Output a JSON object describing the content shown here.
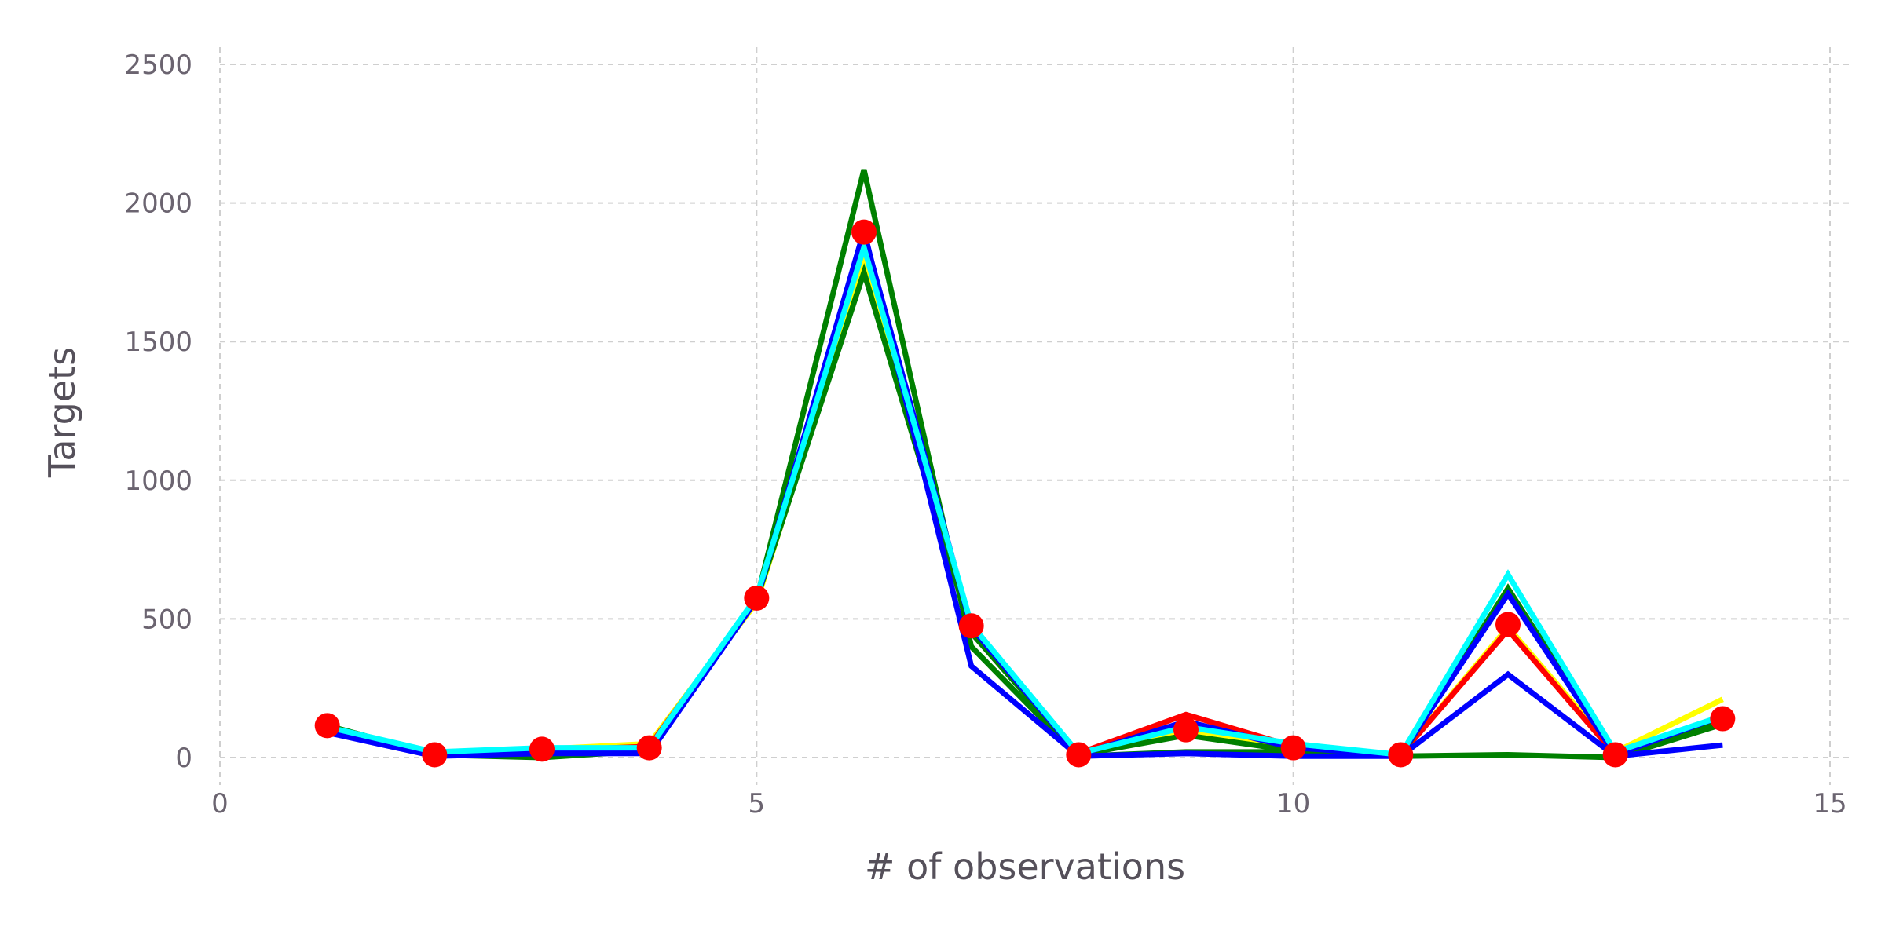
{
  "chart_data": {
    "type": "line",
    "title": "",
    "xlabel": "# of observations",
    "ylabel": "Targets",
    "xlim": [
      0,
      15
    ],
    "ylim": [
      -50,
      2550
    ],
    "xticks": [
      0,
      5,
      10,
      15
    ],
    "yticks": [
      0,
      500,
      1000,
      1500,
      2000,
      2500
    ],
    "xtick_labels": [
      "0",
      "5",
      "10",
      "15"
    ],
    "ytick_labels": [
      "0",
      "500",
      "1000",
      "1500",
      "2000",
      "2500"
    ],
    "grid": true,
    "x": [
      1,
      2,
      3,
      4,
      5,
      6,
      7,
      8,
      9,
      10,
      11,
      12,
      13,
      14
    ],
    "series": [
      {
        "color": "#ffff00",
        "values": [
          110,
          15,
          30,
          50,
          560,
          1780,
          470,
          10,
          90,
          40,
          10,
          470,
          20,
          210
        ]
      },
      {
        "color": "#ff0000",
        "values": [
          110,
          10,
          25,
          40,
          570,
          1860,
          460,
          15,
          155,
          40,
          10,
          460,
          10,
          150
        ]
      },
      {
        "color": "#008000",
        "values": [
          115,
          10,
          0,
          25,
          570,
          2120,
          400,
          5,
          20,
          20,
          5,
          10,
          0,
          120
        ]
      },
      {
        "color": "#008000",
        "values": [
          115,
          10,
          25,
          35,
          570,
          1750,
          450,
          10,
          80,
          25,
          5,
          610,
          10,
          130
        ]
      },
      {
        "color": "#0000ff",
        "values": [
          90,
          5,
          15,
          15,
          570,
          1900,
          330,
          5,
          15,
          5,
          5,
          300,
          5,
          45
        ]
      },
      {
        "color": "#0000ff",
        "values": [
          100,
          10,
          25,
          25,
          570,
          1890,
          470,
          10,
          130,
          35,
          10,
          590,
          10,
          150
        ]
      },
      {
        "color": "#00ffff",
        "values": [
          110,
          20,
          35,
          35,
          580,
          1840,
          480,
          15,
          110,
          50,
          10,
          660,
          20,
          150
        ]
      }
    ],
    "markers": {
      "color": "#ff0000",
      "values": [
        115,
        10,
        30,
        35,
        575,
        1895,
        475,
        10,
        100,
        35,
        10,
        480,
        10,
        140
      ]
    }
  }
}
